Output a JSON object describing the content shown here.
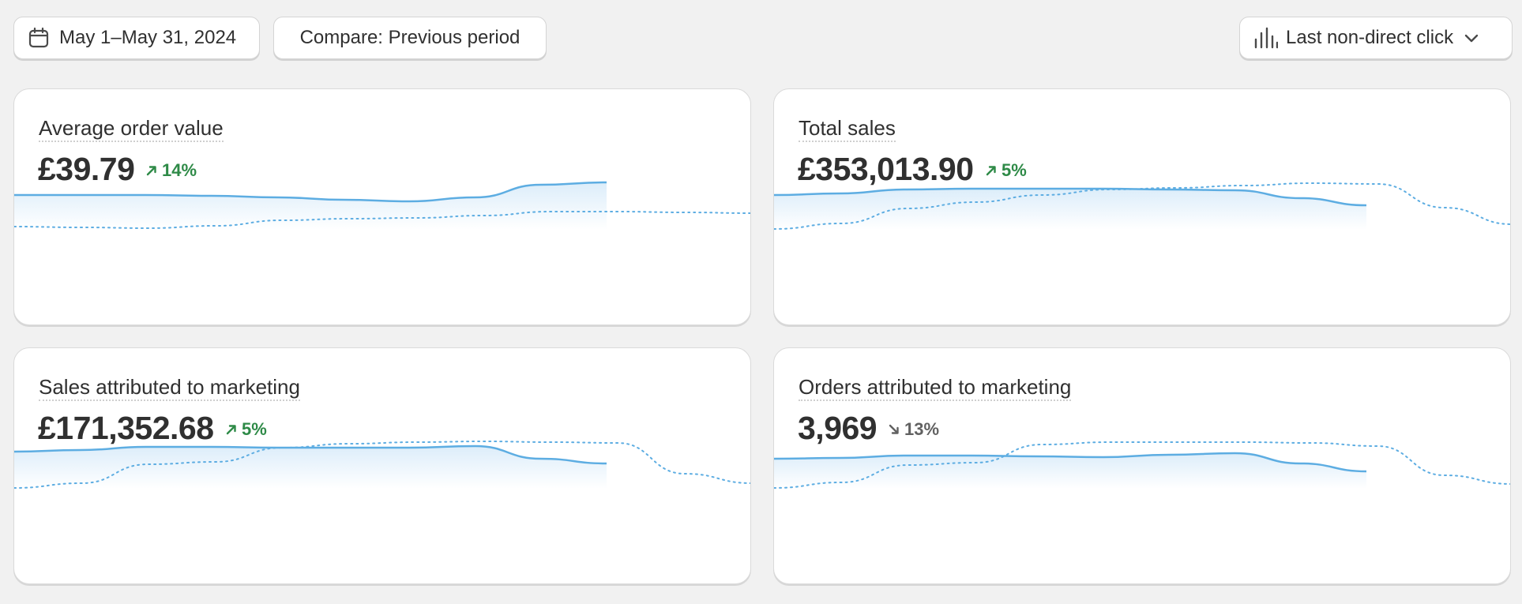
{
  "toolbar": {
    "date_range": "May 1–May 31, 2024",
    "compare": "Compare: Previous period",
    "attribution_model": "Last non-direct click"
  },
  "colors": {
    "current_line": "#5dade2",
    "area_fill": "#dcedfa",
    "positive": "#2e8a47",
    "neutral": "#616161"
  },
  "cards": [
    {
      "title": "Average order value",
      "value": "£39.79",
      "delta": "14%",
      "direction": "up",
      "current": [
        246,
        246,
        246,
        247,
        249,
        252,
        254,
        249,
        233,
        230
      ],
      "previous": [
        286,
        287,
        288,
        285,
        278,
        276,
        275,
        272,
        267,
        267,
        268,
        269
      ]
    },
    {
      "title": "Total sales",
      "value": "£353,013.90",
      "delta": "5%",
      "direction": "up",
      "current": [
        246,
        244,
        239,
        238,
        238,
        238,
        239,
        240,
        250,
        259
      ],
      "previous": [
        289,
        282,
        263,
        255,
        246,
        239,
        237,
        234,
        231,
        232,
        262,
        283
      ]
    },
    {
      "title": "Sales attributed to marketing",
      "value": "£171,352.68",
      "delta": "5%",
      "direction": "up",
      "current": [
        243,
        241,
        237,
        237,
        238,
        238,
        238,
        236,
        252,
        258
      ],
      "previous": [
        289,
        283,
        259,
        256,
        238,
        233,
        231,
        230,
        231,
        232,
        271,
        283
      ]
    },
    {
      "title": "Orders attributed to marketing",
      "value": "3,969",
      "delta": "13%",
      "direction": "down",
      "current": [
        252,
        251,
        248,
        248,
        249,
        250,
        247,
        245,
        258,
        268
      ],
      "previous": [
        289,
        282,
        260,
        257,
        234,
        231,
        231,
        231,
        232,
        236,
        273,
        284
      ]
    }
  ]
}
